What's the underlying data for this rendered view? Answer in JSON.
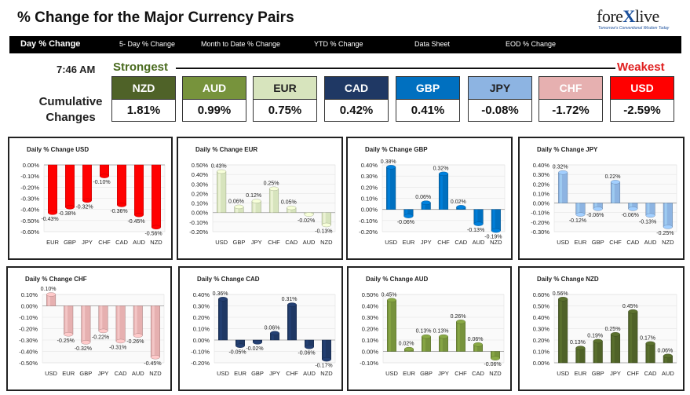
{
  "header": {
    "title": "% Change for the Major Currency Pairs",
    "logo_pre": "fore",
    "logo_x": "X",
    "logo_post": "live",
    "tagline": "Tomorrow's Conventional Wisdom Today"
  },
  "nav": [
    {
      "label": "Day % Change",
      "active": true
    },
    {
      "label": "5- Day % Change"
    },
    {
      "label": "Month to Date % Change"
    },
    {
      "label": "YTD % Change"
    },
    {
      "label": "Data Sheet"
    },
    {
      "label": "EOD % Change"
    }
  ],
  "summary": {
    "time": "7:46 AM",
    "strongest": "Strongest",
    "weakest": "Weakest",
    "cumulative_label_1": "Cumulative",
    "cumulative_label_2": "Changes",
    "currencies": [
      {
        "code": "NZD",
        "value": "1.81%",
        "color": "#4f6228",
        "text": "#ffffff"
      },
      {
        "code": "AUD",
        "value": "0.99%",
        "color": "#77933c",
        "text": "#ffffff"
      },
      {
        "code": "EUR",
        "value": "0.75%",
        "color": "#d7e4bd",
        "text": "#222222"
      },
      {
        "code": "CAD",
        "value": "0.42%",
        "color": "#1f3864",
        "text": "#ffffff"
      },
      {
        "code": "GBP",
        "value": "0.41%",
        "color": "#0070c0",
        "text": "#ffffff"
      },
      {
        "code": "JPY",
        "value": "-0.08%",
        "color": "#8db4e2",
        "text": "#222222"
      },
      {
        "code": "CHF",
        "value": "-1.72%",
        "color": "#e6b0b0",
        "text": "#ffffff"
      },
      {
        "code": "USD",
        "value": "-2.59%",
        "color": "#ff0000",
        "text": "#ffffff"
      }
    ]
  },
  "chart_data": [
    {
      "type": "bar",
      "title": "Daily % Change USD",
      "color": "#ff0000",
      "categories": [
        "EUR",
        "GBP",
        "JPY",
        "CHF",
        "CAD",
        "AUD",
        "NZD"
      ],
      "values": [
        -0.43,
        -0.38,
        -0.32,
        -0.1,
        -0.36,
        -0.45,
        -0.56
      ],
      "labels": [
        "-0.43%",
        "-0.38%",
        "-0.32%",
        "-0.10%",
        "-0.36%",
        "-0.45%",
        "-0.56%"
      ],
      "ylim": [
        -0.6,
        0
      ],
      "ticks": [
        "0.00%",
        "-0.10%",
        "-0.20%",
        "-0.30%",
        "-0.40%",
        "-0.50%",
        "-0.60%"
      ]
    },
    {
      "type": "bar",
      "title": "Daily % Change EUR",
      "color": "#d7e4bd",
      "categories": [
        "USD",
        "GBP",
        "JPY",
        "CHF",
        "CAD",
        "AUD",
        "NZD"
      ],
      "values": [
        0.43,
        0.06,
        0.12,
        0.25,
        0.05,
        -0.02,
        -0.13
      ],
      "labels": [
        "0.43%",
        "0.06%",
        "0.12%",
        "0.25%",
        "0.05%",
        "-0.02%",
        "-0.13%"
      ],
      "ylim": [
        -0.2,
        0.5
      ],
      "ticks": [
        "0.50%",
        "0.40%",
        "0.30%",
        "0.20%",
        "0.10%",
        "0.00%",
        "-0.10%",
        "-0.20%"
      ]
    },
    {
      "type": "bar",
      "title": "Daily % Change GBP",
      "color": "#0070c0",
      "categories": [
        "USD",
        "EUR",
        "JPY",
        "CHF",
        "CAD",
        "AUD",
        "NZD"
      ],
      "values": [
        0.38,
        -0.06,
        0.06,
        0.32,
        0.02,
        -0.13,
        -0.19
      ],
      "labels": [
        "0.38%",
        "-0.06%",
        "0.06%",
        "0.32%",
        "0.02%",
        "-0.13%",
        "-0.19%"
      ],
      "ylim": [
        -0.2,
        0.4
      ],
      "ticks": [
        "0.40%",
        "0.30%",
        "0.20%",
        "0.10%",
        "0.00%",
        "-0.10%",
        "-0.20%"
      ]
    },
    {
      "type": "bar",
      "title": "Daily % Change JPY",
      "color": "#8db4e2",
      "categories": [
        "USD",
        "EUR",
        "GBP",
        "CHF",
        "CAD",
        "AUD",
        "NZD"
      ],
      "values": [
        0.32,
        -0.12,
        -0.06,
        0.22,
        -0.06,
        -0.13,
        -0.25
      ],
      "labels": [
        "0.32%",
        "-0.12%",
        "-0.06%",
        "0.22%",
        "-0.06%",
        "-0.13%",
        "-0.25%"
      ],
      "ylim": [
        -0.3,
        0.4
      ],
      "ticks": [
        "0.40%",
        "0.30%",
        "0.20%",
        "0.10%",
        "0.00%",
        "-0.10%",
        "-0.20%",
        "-0.30%"
      ]
    },
    {
      "type": "bar",
      "title": "Daily % Change CHF",
      "color": "#e6b0b0",
      "categories": [
        "USD",
        "EUR",
        "GBP",
        "JPY",
        "CAD",
        "AUD",
        "NZD"
      ],
      "values": [
        0.1,
        -0.25,
        -0.32,
        -0.22,
        -0.31,
        -0.26,
        -0.45
      ],
      "labels": [
        "0.10%",
        "-0.25%",
        "-0.32%",
        "-0.22%",
        "-0.31%",
        "-0.26%",
        "-0.45%"
      ],
      "ylim": [
        -0.5,
        0.1
      ],
      "ticks": [
        "0.10%",
        "0.00%",
        "-0.10%",
        "-0.20%",
        "-0.30%",
        "-0.40%",
        "-0.50%"
      ]
    },
    {
      "type": "bar",
      "title": "Daily % Change CAD",
      "color": "#1f3864",
      "categories": [
        "USD",
        "EUR",
        "GBP",
        "JPY",
        "CHF",
        "AUD",
        "NZD"
      ],
      "values": [
        0.36,
        -0.05,
        -0.02,
        0.06,
        0.31,
        -0.06,
        -0.17
      ],
      "labels": [
        "0.36%",
        "-0.05%",
        "-0.02%",
        "0.06%",
        "0.31%",
        "-0.06%",
        "-0.17%"
      ],
      "ylim": [
        -0.2,
        0.4
      ],
      "ticks": [
        "0.40%",
        "0.30%",
        "0.20%",
        "0.10%",
        "0.00%",
        "-0.10%",
        "-0.20%"
      ]
    },
    {
      "type": "bar",
      "title": "Daily % Change AUD",
      "color": "#77933c",
      "categories": [
        "USD",
        "EUR",
        "GBP",
        "JPY",
        "CHF",
        "CAD",
        "NZD"
      ],
      "values": [
        0.45,
        0.02,
        0.13,
        0.13,
        0.26,
        0.06,
        -0.06
      ],
      "labels": [
        "0.45%",
        "0.02%",
        "0.13%",
        "0.13%",
        "0.26%",
        "0.06%",
        "-0.06%"
      ],
      "ylim": [
        -0.1,
        0.5
      ],
      "ticks": [
        "0.50%",
        "0.40%",
        "0.30%",
        "0.20%",
        "0.10%",
        "0.00%",
        "-0.10%"
      ]
    },
    {
      "type": "bar",
      "title": "Daily % Change NZD",
      "color": "#4f6228",
      "categories": [
        "USD",
        "EUR",
        "GBP",
        "JPY",
        "CHF",
        "CAD",
        "AUD"
      ],
      "values": [
        0.56,
        0.13,
        0.19,
        0.25,
        0.45,
        0.17,
        0.06
      ],
      "labels": [
        "0.56%",
        "0.13%",
        "0.19%",
        "0.25%",
        "0.45%",
        "0.17%",
        "0.06%"
      ],
      "ylim": [
        0,
        0.6
      ],
      "ticks": [
        "0.60%",
        "0.50%",
        "0.40%",
        "0.30%",
        "0.20%",
        "0.10%",
        "0.00%"
      ]
    }
  ]
}
